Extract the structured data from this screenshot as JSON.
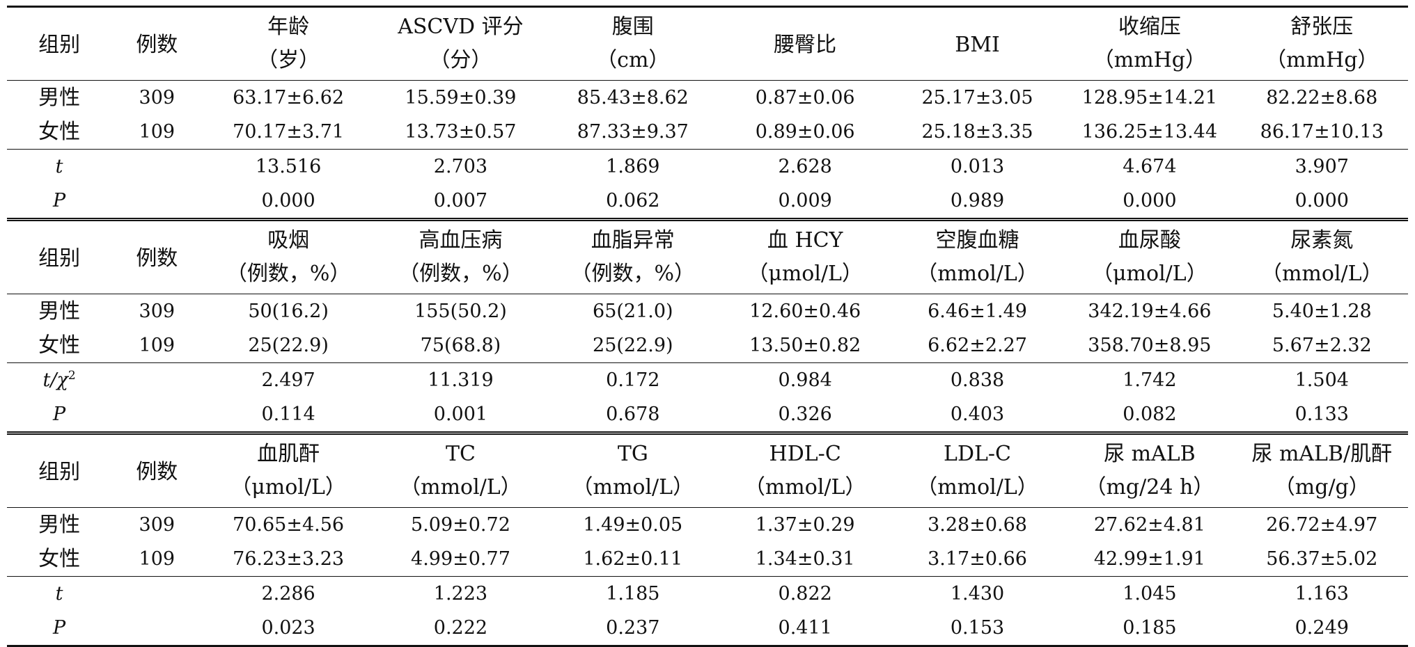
{
  "sections": [
    {
      "head": {
        "group": "组别",
        "n": "例数",
        "cols": [
          {
            "l1": "年龄",
            "l2": "（岁）"
          },
          {
            "l1": "ASCVD 评分",
            "l2": "（分）"
          },
          {
            "l1": "腹围",
            "l2": "（cm）"
          },
          {
            "l1": "腰臀比",
            "l2": ""
          },
          {
            "l1": "BMI",
            "l2": ""
          },
          {
            "l1": "收缩压",
            "l2": "（mmHg）"
          },
          {
            "l1": "舒张压",
            "l2": "（mmHg）"
          }
        ]
      },
      "rows": [
        {
          "group": "男性",
          "n": "309",
          "v": [
            "63.17±6.62",
            "15.59±0.39",
            "85.43±8.62",
            "0.87±0.06",
            "25.17±3.05",
            "128.95±14.21",
            "82.22±8.68"
          ]
        },
        {
          "group": "女性",
          "n": "109",
          "v": [
            "70.17±3.71",
            "13.73±0.57",
            "87.33±9.37",
            "0.89±0.06",
            "25.18±3.35",
            "136.25±13.44",
            "86.17±10.13"
          ]
        }
      ],
      "stats": [
        {
          "label": "t",
          "v": [
            "13.516",
            "2.703",
            "1.869",
            "2.628",
            "0.013",
            "4.674",
            "3.907"
          ]
        },
        {
          "label": "P",
          "v": [
            "0.000",
            "0.007",
            "0.062",
            "0.009",
            "0.989",
            "0.000",
            "0.000"
          ]
        }
      ]
    },
    {
      "head": {
        "group": "组别",
        "n": "例数",
        "cols": [
          {
            "l1": "吸烟",
            "l2": "（例数，%）"
          },
          {
            "l1": "高血压病",
            "l2": "（例数，%）"
          },
          {
            "l1": "血脂异常",
            "l2": "（例数，%）"
          },
          {
            "l1": "血 HCY",
            "l2": "（μmol/L）"
          },
          {
            "l1": "空腹血糖",
            "l2": "（mmol/L）"
          },
          {
            "l1": "血尿酸",
            "l2": "（μmol/L）"
          },
          {
            "l1": "尿素氮",
            "l2": "（mmol/L）"
          }
        ]
      },
      "rows": [
        {
          "group": "男性",
          "n": "309",
          "v": [
            "50(16.2)",
            "155(50.2)",
            "65(21.0)",
            "12.60±0.46",
            "6.46±1.49",
            "342.19±4.66",
            "5.40±1.28"
          ]
        },
        {
          "group": "女性",
          "n": "109",
          "v": [
            "25(22.9)",
            "75(68.8)",
            "25(22.9)",
            "13.50±0.82",
            "6.62±2.27",
            "358.70±8.95",
            "5.67±2.32"
          ]
        }
      ],
      "stats": [
        {
          "label": "t/χ",
          "sup": "2",
          "v": [
            "2.497",
            "11.319",
            "0.172",
            "0.984",
            "0.838",
            "1.742",
            "1.504"
          ]
        },
        {
          "label": "P",
          "v": [
            "0.114",
            "0.001",
            "0.678",
            "0.326",
            "0.403",
            "0.082",
            "0.133"
          ]
        }
      ]
    },
    {
      "head": {
        "group": "组别",
        "n": "例数",
        "cols": [
          {
            "l1": "血肌酐",
            "l2": "（μmol/L）"
          },
          {
            "l1": "TC",
            "l2": "（mmol/L）"
          },
          {
            "l1": "TG",
            "l2": "（mmol/L）"
          },
          {
            "l1": "HDL-C",
            "l2": "（mmol/L）"
          },
          {
            "l1": "LDL-C",
            "l2": "（mmol/L）"
          },
          {
            "l1": "尿 mALB",
            "l2": "（mg/24 h）"
          },
          {
            "l1": "尿 mALB/肌酐",
            "l2": "（mg/g）"
          }
        ]
      },
      "rows": [
        {
          "group": "男性",
          "n": "309",
          "v": [
            "70.65±4.56",
            "5.09±0.72",
            "1.49±0.05",
            "1.37±0.29",
            "3.28±0.68",
            "27.62±4.81",
            "26.72±4.97"
          ]
        },
        {
          "group": "女性",
          "n": "109",
          "v": [
            "76.23±3.23",
            "4.99±0.77",
            "1.62±0.11",
            "1.34±0.31",
            "3.17±0.66",
            "42.99±1.91",
            "56.37±5.02"
          ]
        }
      ],
      "stats": [
        {
          "label": "t",
          "v": [
            "2.286",
            "1.223",
            "1.185",
            "0.822",
            "1.430",
            "1.045",
            "1.163"
          ]
        },
        {
          "label": "P",
          "v": [
            "0.023",
            "0.222",
            "0.237",
            "0.411",
            "0.153",
            "0.185",
            "0.249"
          ]
        }
      ]
    }
  ]
}
